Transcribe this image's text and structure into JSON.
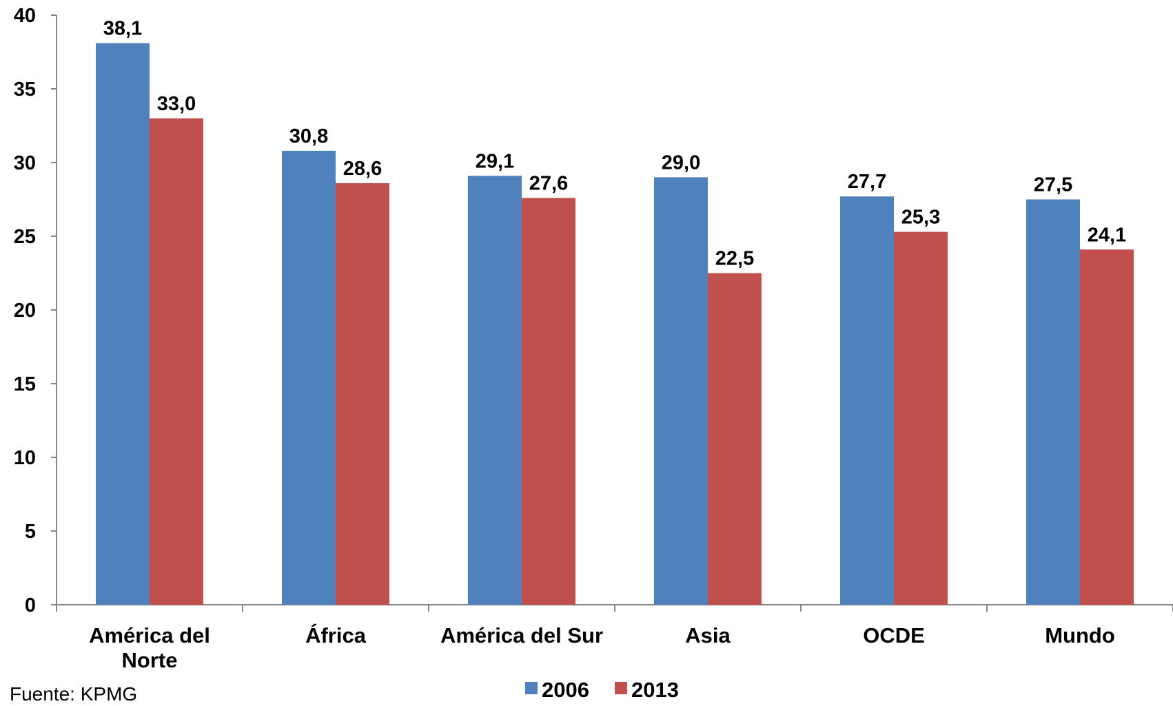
{
  "chart_data": {
    "type": "bar",
    "categories": [
      [
        "América del",
        "Norte"
      ],
      [
        "África"
      ],
      [
        "América del Sur"
      ],
      [
        "Asia"
      ],
      [
        "OCDE"
      ],
      [
        "Mundo"
      ]
    ],
    "series": [
      {
        "name": "2006",
        "color": "#4F81BD",
        "values": [
          38.1,
          30.8,
          29.1,
          29.0,
          27.7,
          27.5
        ],
        "labels": [
          "38,1",
          "30,8",
          "29,1",
          "29,0",
          "27,7",
          "27,5"
        ]
      },
      {
        "name": "2013",
        "color": "#C0504D",
        "values": [
          33.0,
          28.6,
          27.6,
          22.5,
          25.3,
          24.1
        ],
        "labels": [
          "33,0",
          "28,6",
          "27,6",
          "22,5",
          "25,3",
          "24,1"
        ]
      }
    ],
    "ylim": [
      0,
      40
    ],
    "yticks": [
      0,
      5,
      10,
      15,
      20,
      25,
      30,
      35,
      40
    ],
    "legend_position": "bottom-center",
    "grid": false
  },
  "source_text": "Fuente: KPMG"
}
